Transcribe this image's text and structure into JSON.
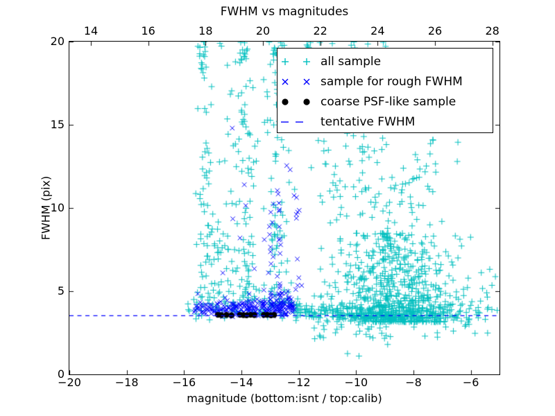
{
  "chart_data": {
    "type": "scatter",
    "title": "FWHM vs magnitudes",
    "xlabel": "magnitude (bottom:isnt / top:calib)",
    "ylabel": "FWHM (pix)",
    "x_bottom_axis": {
      "range": [
        -20,
        -5
      ],
      "ticks": [
        -20,
        -18,
        -16,
        -14,
        -12,
        -10,
        -8,
        -6
      ],
      "tick_labels": [
        "−20",
        "−18",
        "−16",
        "−14",
        "−12",
        "−10",
        "−8",
        "−6"
      ]
    },
    "x_top_axis": {
      "range": [
        13.25,
        28.25
      ],
      "ticks": [
        14,
        16,
        18,
        20,
        22,
        24,
        26,
        28
      ],
      "tick_labels": [
        "14",
        "16",
        "18",
        "20",
        "22",
        "24",
        "26",
        "28"
      ]
    },
    "y_axis": {
      "range": [
        0,
        20
      ],
      "ticks": [
        0,
        5,
        10,
        15,
        20
      ],
      "tick_labels": [
        "0",
        "5",
        "10",
        "15",
        "20"
      ]
    },
    "grid": false,
    "tentative_fwhm": 3.55,
    "seed": 20240612,
    "marker_colors": {
      "all_sample": "#00BFBF",
      "rough_fwhm": "#0000FF",
      "psf_like": "#000000",
      "tentative_line": "#0000FF"
    },
    "series": [
      {
        "name": "all sample",
        "marker": "plus",
        "color": "#00BFBF",
        "clusters": [
          {
            "n": 15,
            "x": [
              "norm",
              -15.33,
              0.07
            ],
            "y": [
              "uni",
              17.3,
              20
            ]
          },
          {
            "n": 25,
            "x": [
              "norm",
              -15.2,
              0.13
            ],
            "y": [
              "uni",
              8,
              17.5
            ]
          },
          {
            "n": 30,
            "x": [
              "norm",
              -15.05,
              0.22
            ],
            "y": [
              "uni",
              4.3,
              9
            ]
          },
          {
            "n": 45,
            "x": [
              "uni",
              -15.6,
              -14.2
            ],
            "y": [
              "pow",
              4.2,
              20,
              2.2
            ]
          },
          {
            "n": 70,
            "x": [
              "norm",
              -13.9,
              0.17
            ],
            "y": [
              "pow",
              4.2,
              20,
              1.6
            ]
          },
          {
            "n": 10,
            "x": [
              "norm",
              -13.88,
              0.1
            ],
            "y": [
              "uni",
              18.7,
              20
            ]
          },
          {
            "n": 55,
            "x": [
              "norm",
              -12.82,
              0.13
            ],
            "y": [
              "pow",
              4.2,
              20,
              1.7
            ]
          },
          {
            "n": 12,
            "x": [
              "norm",
              -12.8,
              0.12
            ],
            "y": [
              "uni",
              18.8,
              20
            ]
          },
          {
            "n": 60,
            "x": [
              "uni",
              -14.6,
              -12.1
            ],
            "y": [
              "pow",
              4.3,
              18,
              2.0
            ]
          },
          {
            "n": 55,
            "x": [
              "uni",
              -15.9,
              -12.1
            ],
            "y": [
              "norm",
              3.9,
              0.35
            ]
          },
          {
            "n": 520,
            "x": [
              "norm",
              -8.6,
              1.05,
              -11.6,
              -5.1
            ],
            "y": [
              "pow",
              3.15,
              8.5,
              2.0
            ]
          },
          {
            "n": 300,
            "x": [
              "norm",
              -9.0,
              1.25,
              -11.8,
              -5.05
            ],
            "y": [
              "pow",
              3.4,
              14.5,
              2.6
            ]
          },
          {
            "n": 35,
            "x": [
              "uni",
              -11.4,
              -7.2
            ],
            "y": [
              "uni",
              10,
              14.3
            ]
          },
          {
            "n": 14,
            "x": [
              "uni",
              -13.3,
              -8.8
            ],
            "y": [
              "uni",
              19.6,
              20
            ]
          },
          {
            "n": 170,
            "x": [
              "pow",
              -12.1,
              -5.05,
              1.7
            ],
            "y": [
              "norm",
              3.75,
              0.3
            ]
          },
          {
            "n": 45,
            "x": [
              "pow",
              -11.5,
              -5.2,
              1.4
            ],
            "y": [
              "uni",
              2.1,
              3.35
            ]
          },
          {
            "n": 8,
            "x": [
              "uni",
              -6.6,
              -5.1
            ],
            "y": [
              "uni",
              4.5,
              7.2
            ]
          }
        ],
        "points": [
          [
            -6.45,
            13.95
          ],
          [
            -10.3,
            1.25
          ],
          [
            -9.9,
            1.1
          ],
          [
            -8.9,
            1.8
          ],
          [
            -7.6,
            2.3
          ],
          [
            -15.66,
            4.5
          ]
        ]
      },
      {
        "name": "sample for rough FWHM",
        "marker": "x",
        "color": "#0000FF",
        "clusters": [
          {
            "n": 200,
            "x": [
              "uni",
              -15.65,
              -12.15
            ],
            "y": [
              "norm",
              3.95,
              0.28,
              3.45,
              5.3
            ]
          },
          {
            "n": 60,
            "x": [
              "uni",
              -13.4,
              -12.2
            ],
            "y": [
              "norm",
              4.15,
              0.45,
              3.5,
              5.8
            ]
          },
          {
            "n": 10,
            "x": [
              "norm",
              -12.98,
              0.05
            ],
            "y": [
              "uni",
              4.8,
              10.3
            ]
          },
          {
            "n": 11,
            "x": [
              "norm",
              -12.68,
              0.05
            ],
            "y": [
              "uni",
              4.8,
              11.2
            ]
          },
          {
            "n": 11,
            "x": [
              "norm",
              -12.08,
              0.06
            ],
            "y": [
              "uni",
              5.0,
              11.9
            ]
          }
        ],
        "points": [
          [
            -14.32,
            14.8
          ],
          [
            -14.3,
            9.35
          ],
          [
            -14.05,
            8.2
          ],
          [
            -13.85,
            10.15
          ],
          [
            -13.2,
            8.1
          ],
          [
            -12.42,
            12.55
          ],
          [
            -12.3,
            12.3
          ],
          [
            -14.65,
            6.1
          ],
          [
            -15.52,
            4.85
          ],
          [
            -13.55,
            6.35
          ],
          [
            -13.9,
            11.4
          ],
          [
            -12.75,
            5.9
          ]
        ]
      },
      {
        "name": "coarse PSF-like sample",
        "marker": "dot",
        "color": "#000000",
        "clusters": [],
        "points": [
          [
            -14.82,
            3.58
          ],
          [
            -14.7,
            3.56
          ],
          [
            -14.52,
            3.57
          ],
          [
            -14.35,
            3.55
          ],
          [
            -14.05,
            3.58
          ],
          [
            -13.93,
            3.56
          ],
          [
            -13.82,
            3.55
          ],
          [
            -13.68,
            3.58
          ],
          [
            -13.55,
            3.56
          ],
          [
            -13.22,
            3.57
          ],
          [
            -13.1,
            3.58
          ],
          [
            -12.97,
            3.55
          ],
          [
            -12.86,
            3.57
          ]
        ]
      },
      {
        "name": "tentative FWHM",
        "marker": "dashes",
        "color": "#0000FF",
        "line_y": 3.55
      }
    ],
    "legend": {
      "position": "upper right",
      "entries": [
        {
          "label": "all sample",
          "marker": "plus",
          "color": "#00BFBF"
        },
        {
          "label": "sample for rough FWHM",
          "marker": "x",
          "color": "#0000FF"
        },
        {
          "label": "coarse PSF-like sample",
          "marker": "dot",
          "color": "#000000"
        },
        {
          "label": "tentative FWHM",
          "marker": "dashes",
          "color": "#0000FF"
        }
      ]
    }
  }
}
